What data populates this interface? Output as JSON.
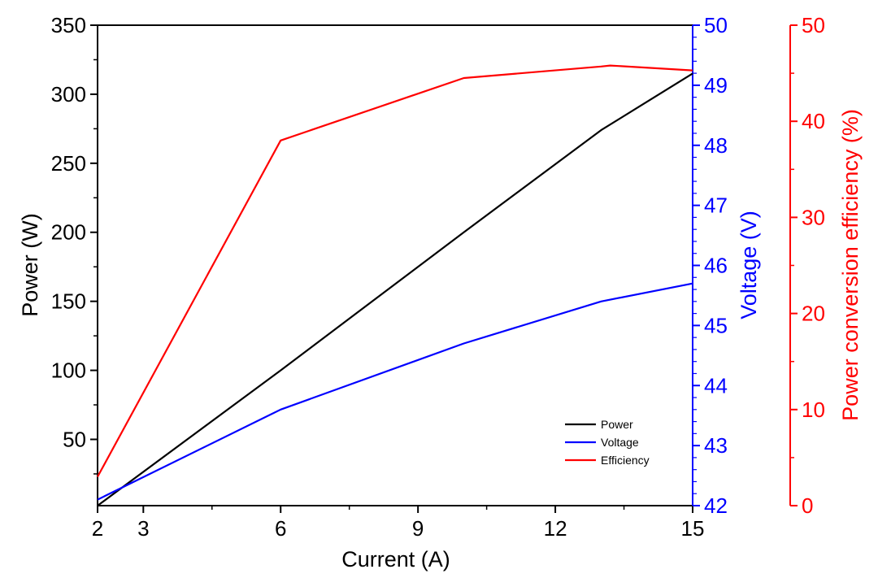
{
  "chart_data": {
    "type": "line",
    "xlabel": "Current (A)",
    "ylabel_left": "Power (W)",
    "ylabel_right1": "Voltage (V)",
    "ylabel_right2": "Power conversion efficiency (%)",
    "xlim": [
      2,
      15
    ],
    "xticks": [
      2,
      3,
      6,
      9,
      12,
      15
    ],
    "ylim_left": [
      2,
      350
    ],
    "yticks_left": [
      50,
      100,
      150,
      200,
      250,
      300,
      350
    ],
    "ylim_right1": [
      42,
      50
    ],
    "yticks_right1": [
      42,
      43,
      44,
      45,
      46,
      47,
      48,
      49,
      50
    ],
    "ylim_right2": [
      0,
      50
    ],
    "yticks_right2": [
      0,
      10,
      20,
      30,
      40,
      50
    ],
    "grid": false,
    "legend_position": "bottom-right",
    "colors": {
      "power": "#000000",
      "voltage": "#0000ff",
      "efficiency": "#ff0000"
    },
    "series": [
      {
        "name": "Power",
        "axis": "left",
        "x": [
          2,
          6,
          10,
          13,
          15
        ],
        "values": [
          2,
          100,
          200,
          274,
          315
        ]
      },
      {
        "name": "Voltage",
        "axis": "right1",
        "x": [
          2,
          6,
          10,
          13,
          15
        ],
        "values": [
          42.1,
          43.6,
          44.7,
          45.4,
          45.7
        ]
      },
      {
        "name": "Efficiency",
        "axis": "right2",
        "x": [
          2,
          6,
          10,
          13,
          13.2,
          15
        ],
        "values": [
          3,
          38,
          44.5,
          45.7,
          45.8,
          45.3
        ]
      }
    ]
  }
}
